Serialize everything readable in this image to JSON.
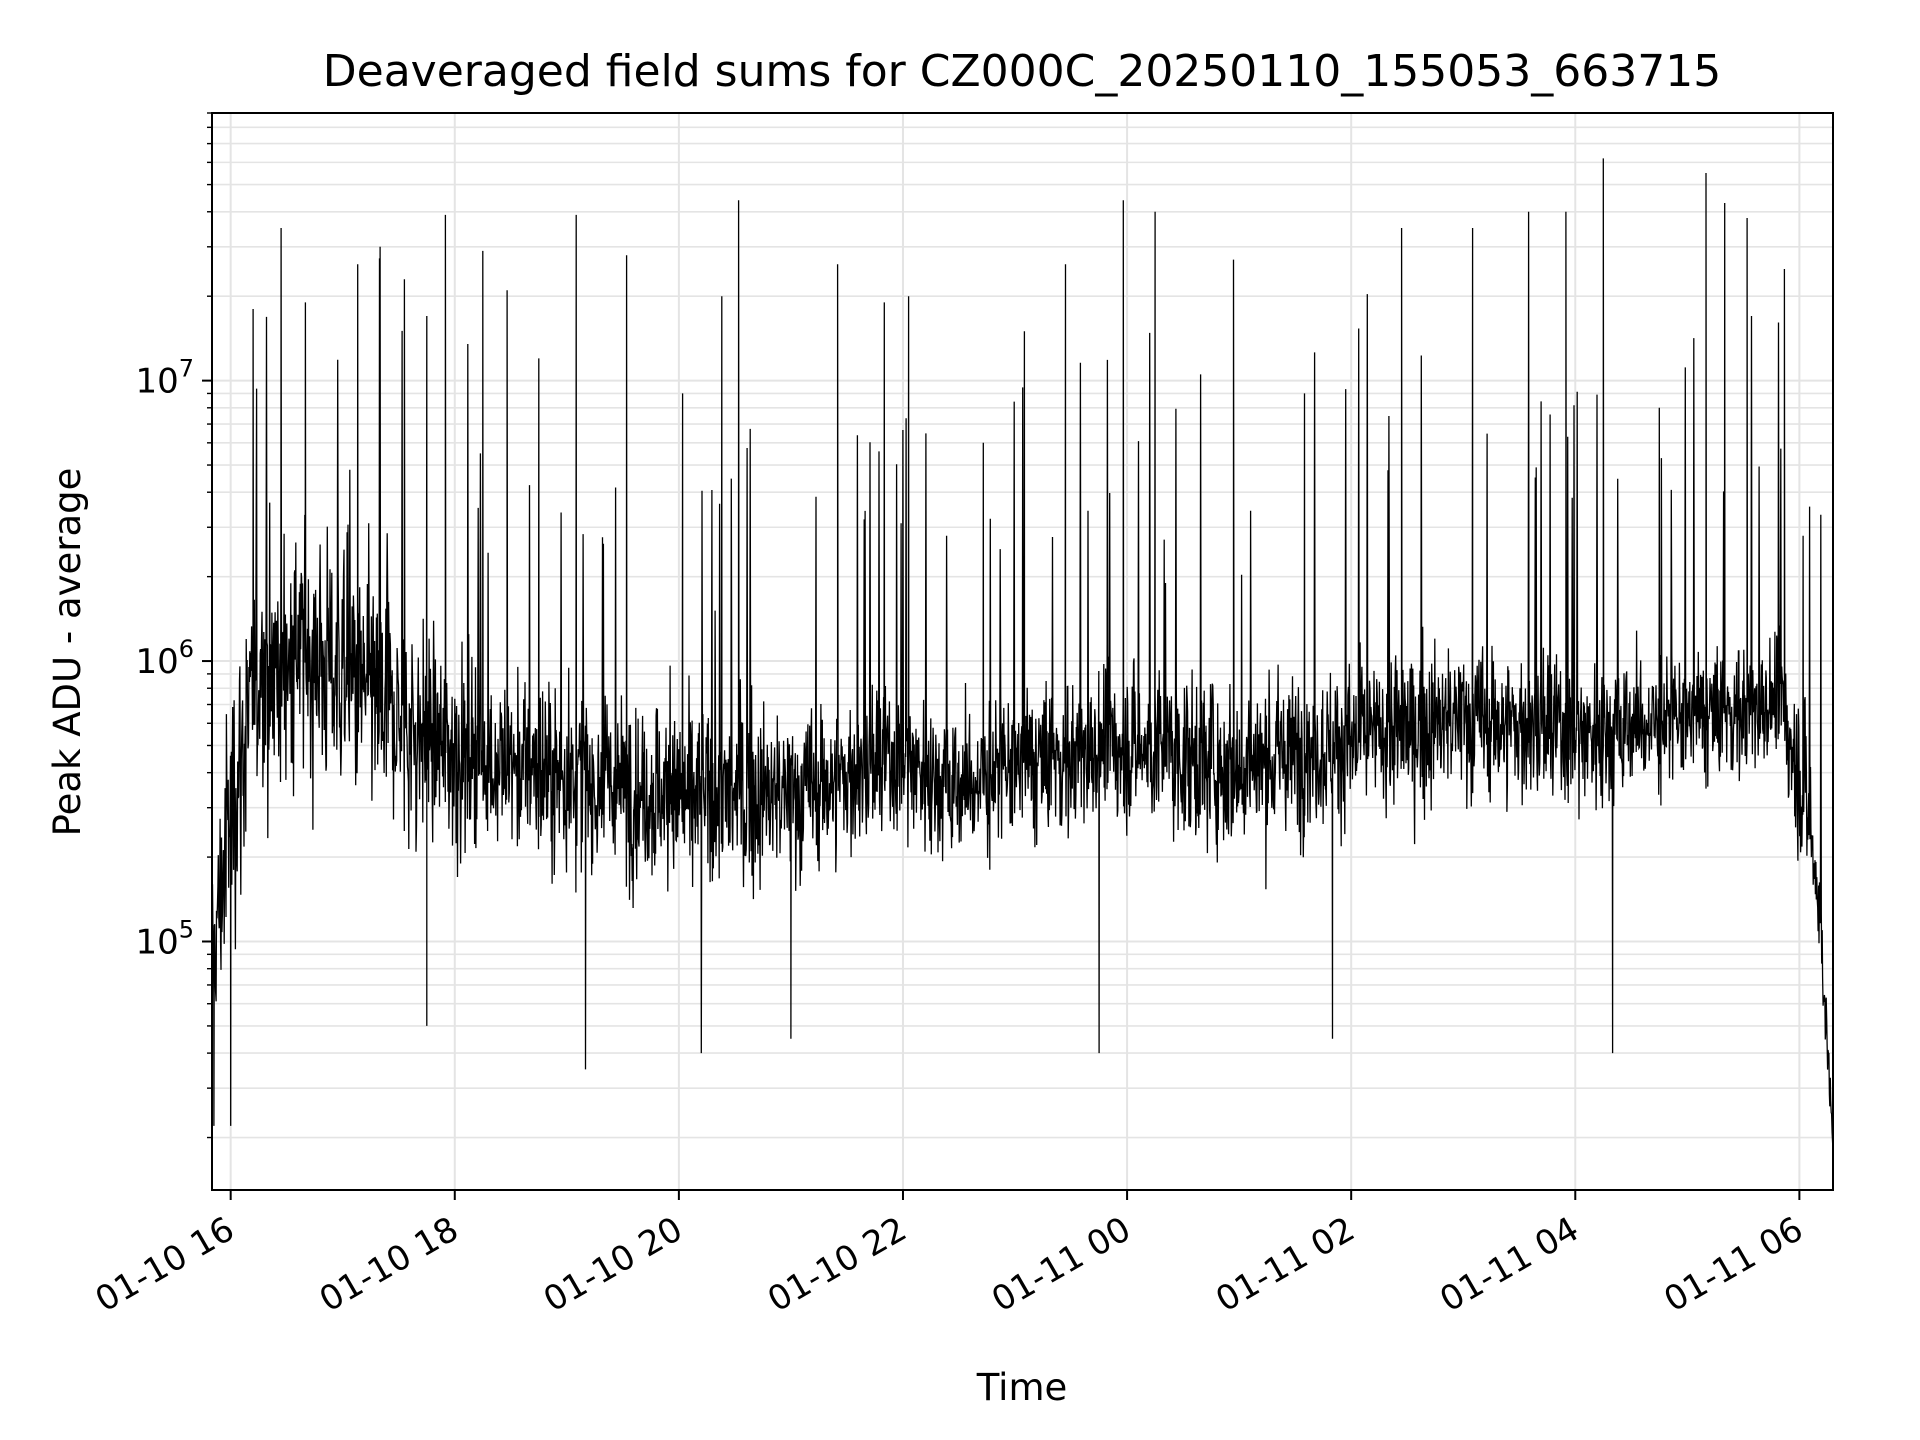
{
  "chart_data": {
    "type": "line",
    "title": "Deaveraged field sums for CZ000C_20250110_155053_663715",
    "xlabel": "Time",
    "ylabel": "Peak ADU - average",
    "yscale": "log",
    "grid": true,
    "legend": "none",
    "line_color": "#000000",
    "xlim": [
      "2025-01-10 15:50",
      "2025-01-11 06:18"
    ],
    "ylim": [
      13000,
      90000000
    ],
    "x_ticks": [
      {
        "t": "2025-01-10 16:00",
        "label": "01-10 16"
      },
      {
        "t": "2025-01-10 18:00",
        "label": "01-10 18"
      },
      {
        "t": "2025-01-10 20:00",
        "label": "01-10 20"
      },
      {
        "t": "2025-01-10 22:00",
        "label": "01-10 22"
      },
      {
        "t": "2025-01-11 00:00",
        "label": "01-11 00"
      },
      {
        "t": "2025-01-11 02:00",
        "label": "01-11 02"
      },
      {
        "t": "2025-01-11 04:00",
        "label": "01-11 04"
      },
      {
        "t": "2025-01-11 06:00",
        "label": "01-11 06"
      }
    ],
    "y_ticks": [
      {
        "value": 100000,
        "base": "10",
        "exp": "5"
      },
      {
        "value": 1000000,
        "base": "10",
        "exp": "6"
      },
      {
        "value": 10000000,
        "base": "10",
        "exp": "7"
      }
    ],
    "series": [
      {
        "envelope": [
          {
            "t": "2025-01-10 15:50",
            "level": 80000,
            "spread": 0.4
          },
          {
            "t": "2025-01-10 16:00",
            "level": 300000,
            "spread": 0.6
          },
          {
            "t": "2025-01-10 16:15",
            "level": 900000,
            "spread": 0.55
          },
          {
            "t": "2025-01-10 16:40",
            "level": 1100000,
            "spread": 0.55
          },
          {
            "t": "2025-01-10 17:10",
            "level": 800000,
            "spread": 0.55
          },
          {
            "t": "2025-01-10 17:40",
            "level": 550000,
            "spread": 0.5
          },
          {
            "t": "2025-01-10 18:00",
            "level": 480000,
            "spread": 0.45
          },
          {
            "t": "2025-01-10 19:00",
            "level": 380000,
            "spread": 0.4
          },
          {
            "t": "2025-01-10 20:00",
            "level": 330000,
            "spread": 0.4
          },
          {
            "t": "2025-01-10 21:00",
            "level": 330000,
            "spread": 0.38
          },
          {
            "t": "2025-01-10 22:00",
            "level": 450000,
            "spread": 0.35
          },
          {
            "t": "2025-01-10 22:30",
            "level": 350000,
            "spread": 0.35
          },
          {
            "t": "2025-01-10 23:00",
            "level": 420000,
            "spread": 0.35
          },
          {
            "t": "2025-01-11 00:00",
            "level": 500000,
            "spread": 0.35
          },
          {
            "t": "2025-01-11 01:00",
            "level": 420000,
            "spread": 0.38
          },
          {
            "t": "2025-01-11 02:00",
            "level": 520000,
            "spread": 0.35
          },
          {
            "t": "2025-01-11 03:00",
            "level": 620000,
            "spread": 0.35
          },
          {
            "t": "2025-01-11 04:00",
            "level": 550000,
            "spread": 0.35
          },
          {
            "t": "2025-01-11 05:00",
            "level": 620000,
            "spread": 0.3
          },
          {
            "t": "2025-01-11 05:50",
            "level": 700000,
            "spread": 0.3
          },
          {
            "t": "2025-01-11 06:05",
            "level": 300000,
            "spread": 0.4
          },
          {
            "t": "2025-01-11 06:12",
            "level": 100000,
            "spread": 0.25
          },
          {
            "t": "2025-01-11 06:18",
            "level": 18000,
            "spread": 0.05
          }
        ],
        "spikes": [
          {
            "t": "2025-01-10 16:27",
            "y": 35000000
          },
          {
            "t": "2025-01-10 16:12",
            "y": 18000000
          },
          {
            "t": "2025-01-10 16:40",
            "y": 19000000
          },
          {
            "t": "2025-01-10 17:08",
            "y": 26000000
          },
          {
            "t": "2025-01-10 17:20",
            "y": 30000000
          },
          {
            "t": "2025-01-10 17:33",
            "y": 23000000
          },
          {
            "t": "2025-01-10 17:45",
            "y": 17000000
          },
          {
            "t": "2025-01-10 17:55",
            "y": 39000000
          },
          {
            "t": "2025-01-10 18:15",
            "y": 29000000
          },
          {
            "t": "2025-01-10 18:28",
            "y": 21000000
          },
          {
            "t": "2025-01-10 18:45",
            "y": 12000000
          },
          {
            "t": "2025-01-10 19:05",
            "y": 39000000
          },
          {
            "t": "2025-01-10 19:32",
            "y": 28000000
          },
          {
            "t": "2025-01-10 20:02",
            "y": 9000000
          },
          {
            "t": "2025-01-10 20:23",
            "y": 20000000
          },
          {
            "t": "2025-01-10 20:32",
            "y": 44000000
          },
          {
            "t": "2025-01-10 21:25",
            "y": 26000000
          },
          {
            "t": "2025-01-10 21:50",
            "y": 19000000
          },
          {
            "t": "2025-01-10 22:03",
            "y": 20000000
          },
          {
            "t": "2025-01-10 22:43",
            "y": 6000000
          },
          {
            "t": "2025-01-10 23:05",
            "y": 15000000
          },
          {
            "t": "2025-01-10 23:27",
            "y": 26000000
          },
          {
            "t": "2025-01-10 23:58",
            "y": 44000000
          },
          {
            "t": "2025-01-11 00:15",
            "y": 40000000
          },
          {
            "t": "2025-01-11 00:57",
            "y": 27000000
          },
          {
            "t": "2025-01-11 01:35",
            "y": 9000000
          },
          {
            "t": "2025-01-11 02:27",
            "y": 35000000
          },
          {
            "t": "2025-01-11 03:05",
            "y": 35000000
          },
          {
            "t": "2025-01-11 03:35",
            "y": 40000000
          },
          {
            "t": "2025-01-11 03:55",
            "y": 40000000
          },
          {
            "t": "2025-01-11 04:15",
            "y": 62000000
          },
          {
            "t": "2025-01-11 04:45",
            "y": 8000000
          },
          {
            "t": "2025-01-11 05:10",
            "y": 55000000
          },
          {
            "t": "2025-01-11 05:20",
            "y": 43000000
          },
          {
            "t": "2025-01-11 05:32",
            "y": 38000000
          },
          {
            "t": "2025-01-11 05:52",
            "y": 25000000
          },
          {
            "t": "2025-01-11 06:02",
            "y": 2800000
          }
        ],
        "dips": [
          {
            "t": "2025-01-10 15:51",
            "y": 22000
          },
          {
            "t": "2025-01-10 16:00",
            "y": 22000
          },
          {
            "t": "2025-01-10 17:45",
            "y": 50000
          },
          {
            "t": "2025-01-10 19:10",
            "y": 35000
          },
          {
            "t": "2025-01-10 20:12",
            "y": 40000
          },
          {
            "t": "2025-01-10 21:00",
            "y": 45000
          },
          {
            "t": "2025-01-10 23:45",
            "y": 40000
          },
          {
            "t": "2025-01-11 01:50",
            "y": 45000
          },
          {
            "t": "2025-01-11 04:20",
            "y": 40000
          }
        ]
      }
    ]
  }
}
